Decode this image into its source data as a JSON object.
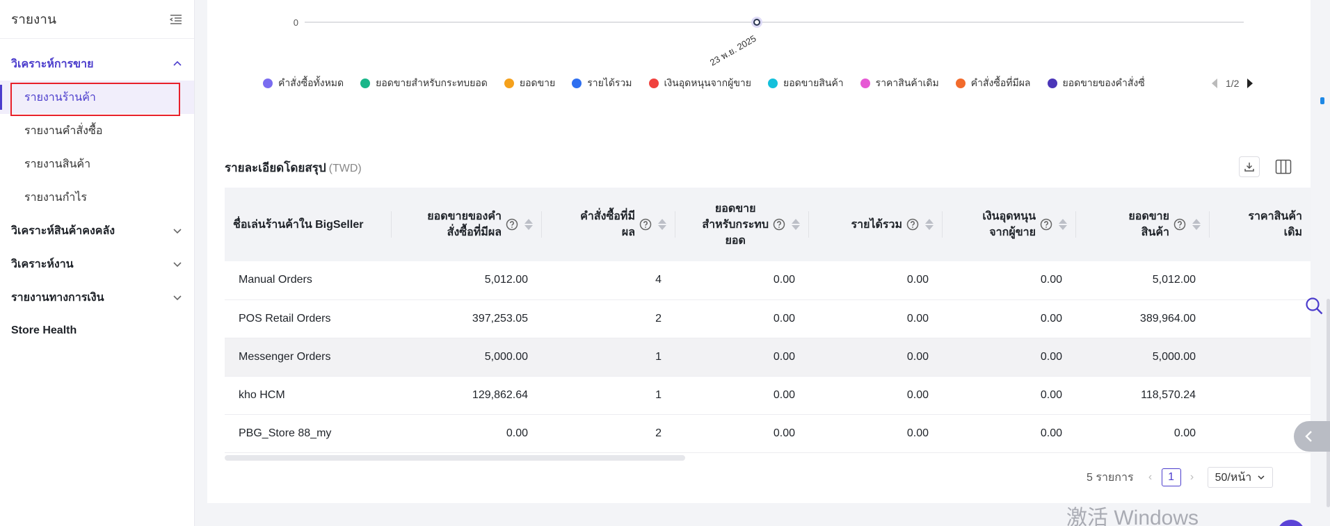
{
  "sidebar": {
    "title": "รายงาน",
    "groups": [
      {
        "label": "วิเคราะห์การขาย",
        "expanded": true
      },
      {
        "label": "วิเคราะห์สินค้าคงคลัง",
        "expanded": false
      },
      {
        "label": "วิเคราะห์งาน",
        "expanded": false
      },
      {
        "label": "รายงานทางการเงิน",
        "expanded": false
      },
      {
        "label": "Store Health",
        "expanded": false
      }
    ],
    "sales_items": [
      {
        "label": "รายงานร้านค้า",
        "selected": true
      },
      {
        "label": "รายงานคำสั่งซื้อ",
        "selected": false
      },
      {
        "label": "รายงานสินค้า",
        "selected": false
      },
      {
        "label": "รายงานกำไร",
        "selected": false
      }
    ]
  },
  "chart_data": {
    "type": "line",
    "x": [
      "23 พ.ย. 2025"
    ],
    "yticks": [
      "0"
    ],
    "series": [
      {
        "name": "คำสั่งซื้อทั้งหมด",
        "color": "#7a6cf0",
        "values": [
          0
        ]
      },
      {
        "name": "ยอดขายสำหรับกระทบยอด",
        "color": "#19b689",
        "values": [
          0
        ]
      },
      {
        "name": "ยอดขาย",
        "color": "#f5a11c",
        "values": [
          0
        ]
      },
      {
        "name": "รายได้รวม",
        "color": "#2e6ff0",
        "values": [
          0
        ]
      },
      {
        "name": "เงินอุดหนุนจากผู้ขาย",
        "color": "#f0423e",
        "values": [
          0
        ]
      },
      {
        "name": "ยอดขายสินค้า",
        "color": "#14c0db",
        "values": [
          0
        ]
      },
      {
        "name": "ราคาสินค้าเดิม",
        "color": "#e659d4",
        "values": [
          0
        ]
      },
      {
        "name": "คำสั่งซื้อที่มีผล",
        "color": "#f26b2c",
        "values": [
          0
        ]
      },
      {
        "name": "ยอดขายของคำสั่งซื่",
        "color": "#4b36b8",
        "values": [
          0
        ]
      }
    ],
    "legend_page": "1/2"
  },
  "summary": {
    "title": "รายละเอียดโดยสรุป",
    "unit": "(TWD)",
    "columns": [
      "ชื่อเล่นร้านค้าใน BigSeller",
      "ยอดขายของคำ\nสั่งซื้อที่มีผล",
      "คำสั่งซื้อที่มี\nผล",
      "ยอดขาย\nสำหรับกระทบ\nยอด",
      "รายได้รวม",
      "เงินอุดหนุน\nจากผู้ขาย",
      "ยอดขาย\nสินค้า",
      "ราคาสินค้า\nเดิม"
    ],
    "rows": [
      [
        "Manual Orders",
        "5,012.00",
        "4",
        "0.00",
        "0.00",
        "0.00",
        "5,012.00",
        ""
      ],
      [
        "POS Retail Orders",
        "397,253.05",
        "2",
        "0.00",
        "0.00",
        "0.00",
        "389,964.00",
        ""
      ],
      [
        "Messenger Orders",
        "5,000.00",
        "1",
        "0.00",
        "0.00",
        "0.00",
        "5,000.00",
        ""
      ],
      [
        "kho HCM",
        "129,862.64",
        "1",
        "0.00",
        "0.00",
        "0.00",
        "118,570.24",
        ""
      ],
      [
        "PBG_Store 88_my",
        "0.00",
        "2",
        "0.00",
        "0.00",
        "0.00",
        "0.00",
        ""
      ]
    ]
  },
  "pagination": {
    "total": "5 รายการ",
    "current_page": "1",
    "page_size": "50/หน้า"
  },
  "watermark": "激活 Windows"
}
